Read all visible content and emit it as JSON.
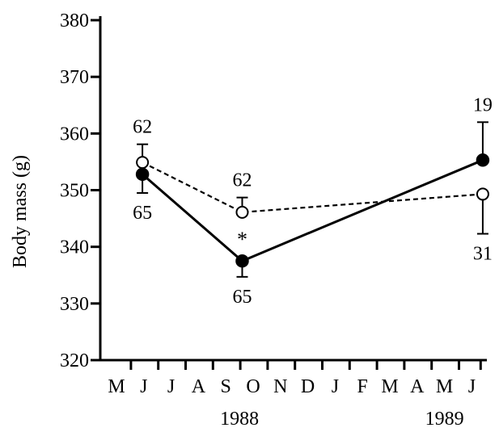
{
  "chart_data": {
    "type": "line",
    "title": "",
    "xlabel": "",
    "ylabel": "Body mass (g)",
    "ylim": [
      320,
      380
    ],
    "yticks": [
      320,
      330,
      340,
      350,
      360,
      370,
      380
    ],
    "x_categories": [
      "M",
      "J",
      "J",
      "A",
      "S",
      "O",
      "N",
      "D",
      "J",
      "F",
      "M",
      "A",
      "M",
      "J"
    ],
    "year_labels": [
      {
        "text": "1988",
        "at_category": 4.5
      },
      {
        "text": "1989",
        "at_category": 12.0
      }
    ],
    "grid": false,
    "series": [
      {
        "marker": "filled-circle",
        "line_style": "solid",
        "x_index": [
          0.95,
          4.6,
          13.4
        ],
        "values": [
          352.8,
          337.5,
          355.3
        ],
        "error_low": [
          349.5,
          334.7,
          null
        ],
        "error_high": [
          null,
          null,
          362.0
        ],
        "n_labels": [
          "65",
          "65",
          "19"
        ],
        "n_label_side": [
          "below",
          "below",
          "above"
        ]
      },
      {
        "marker": "open-circle",
        "line_style": "dashed",
        "x_index": [
          0.95,
          4.6,
          13.4
        ],
        "values": [
          354.9,
          346.1,
          349.3
        ],
        "error_low": [
          null,
          null,
          342.3
        ],
        "error_high": [
          358.1,
          348.7,
          null
        ],
        "n_labels": [
          "62",
          "62",
          "31"
        ],
        "n_label_side": [
          "above",
          "above",
          "below"
        ]
      }
    ],
    "annotations": [
      {
        "text": "*",
        "at_x_index": 4.6,
        "at_value": 341.5
      }
    ]
  }
}
